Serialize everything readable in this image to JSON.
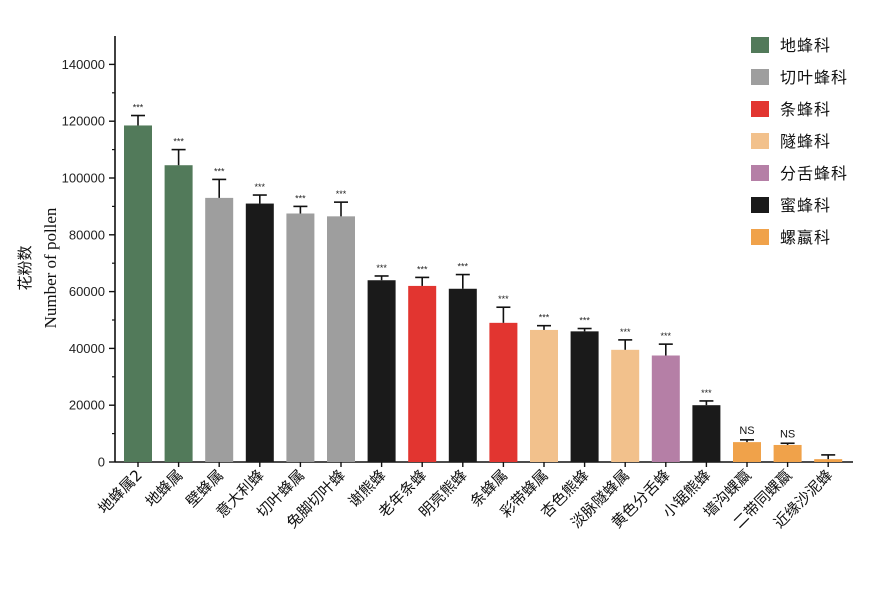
{
  "chart_data": {
    "type": "bar",
    "ylabel_cn": "花粉数",
    "ylabel_en": "Number of pollen",
    "ylim": [
      0,
      150000
    ],
    "yticks": [
      0,
      20000,
      40000,
      60000,
      80000,
      100000,
      120000,
      140000
    ],
    "ytick_labels": [
      "0",
      "20000",
      "40000",
      "60000",
      "80000",
      "100000",
      "120000",
      "140000"
    ],
    "grid": false,
    "legend_position": "top-right",
    "legend": [
      {
        "name": "地蜂科",
        "color": "#527a5a"
      },
      {
        "name": "切叶蜂科",
        "color": "#9e9e9e"
      },
      {
        "name": "条蜂科",
        "color": "#e23530"
      },
      {
        "name": "隧蜂科",
        "color": "#f2c18c"
      },
      {
        "name": "分舌蜂科",
        "color": "#b57fa6"
      },
      {
        "name": "蜜蜂科",
        "color": "#1a1a1a"
      },
      {
        "name": "螺蠃科",
        "color": "#f0a24a"
      }
    ],
    "bars": [
      {
        "category": "地蜂属2",
        "value": 118500,
        "error": 3500,
        "family": "地蜂科",
        "sig": "***"
      },
      {
        "category": "地蜂属",
        "value": 104500,
        "error": 5500,
        "family": "地蜂科",
        "sig": "***"
      },
      {
        "category": "壁蜂属",
        "value": 93000,
        "error": 6500,
        "family": "切叶蜂科",
        "sig": "***"
      },
      {
        "category": "意大利蜂",
        "value": 91000,
        "error": 3000,
        "family": "蜜蜂科",
        "sig": "***"
      },
      {
        "category": "切叶蜂属",
        "value": 87500,
        "error": 2500,
        "family": "切叶蜂科",
        "sig": "***"
      },
      {
        "category": "兔脚切叶蜂",
        "value": 86500,
        "error": 5000,
        "family": "切叶蜂科",
        "sig": "***"
      },
      {
        "category": "谢熊蜂",
        "value": 64000,
        "error": 1500,
        "family": "蜜蜂科",
        "sig": "***"
      },
      {
        "category": "老年条蜂",
        "value": 62000,
        "error": 3000,
        "family": "条蜂科",
        "sig": "***"
      },
      {
        "category": "明亮熊蜂",
        "value": 61000,
        "error": 5000,
        "family": "蜜蜂科",
        "sig": "***"
      },
      {
        "category": "条蜂属",
        "value": 49000,
        "error": 5500,
        "family": "条蜂科",
        "sig": "***"
      },
      {
        "category": "彩带蜂属",
        "value": 46500,
        "error": 1500,
        "family": "隧蜂科",
        "sig": "***"
      },
      {
        "category": "杏色熊蜂",
        "value": 46000,
        "error": 1000,
        "family": "蜜蜂科",
        "sig": "***"
      },
      {
        "category": "淡脉隧蜂属",
        "value": 39500,
        "error": 3500,
        "family": "隧蜂科",
        "sig": "***"
      },
      {
        "category": "黄色分舌蜂",
        "value": 37500,
        "error": 4000,
        "family": "分舌蜂科",
        "sig": "***"
      },
      {
        "category": "小锯熊蜂",
        "value": 20000,
        "error": 1500,
        "family": "蜜蜂科",
        "sig": "***"
      },
      {
        "category": "墙沟蜾蠃",
        "value": 7000,
        "error": 800,
        "family": "螺蠃科",
        "sig": "NS"
      },
      {
        "category": "二带同蜾蠃",
        "value": 6000,
        "error": 600,
        "family": "螺蠃科",
        "sig": "NS"
      },
      {
        "category": "近缘沙泥蜂",
        "value": 1000,
        "error": 1500,
        "family": "螺蠃科",
        "sig": ""
      }
    ]
  }
}
